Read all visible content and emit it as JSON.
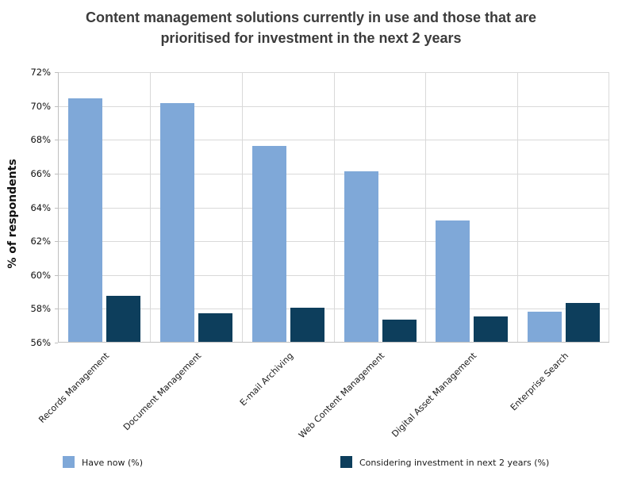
{
  "title_lines": [
    "Content management solutions currently in use and those that are",
    "prioritised for investment in the next 2 years"
  ],
  "chart_data": {
    "type": "bar",
    "title": "Content management solutions currently in use and those that are prioritised for investment in the next 2 years",
    "xlabel": "",
    "ylabel": "% of respondents",
    "ylim": [
      56,
      72
    ],
    "ytick_step": 2,
    "ytick_suffix": "%",
    "grid": true,
    "legend_position": "bottom",
    "categories": [
      "Records Management",
      "Document Management",
      "E-mail Archiving",
      "Web Content Management",
      "Digital Asset Management",
      "Enterprise Search"
    ],
    "series": [
      {
        "name": "Have now (%)",
        "color": "#7FA8D8",
        "values": [
          70.4,
          70.1,
          67.6,
          66.1,
          63.2,
          57.8
        ]
      },
      {
        "name": "Considering investment in next 2 years (%)",
        "color": "#0D3E5C",
        "values": [
          58.7,
          57.7,
          58.0,
          57.3,
          57.5,
          58.3
        ]
      }
    ]
  },
  "colors": {
    "background": "#FFFFFF",
    "title_text": "#3B3B3B",
    "axis_text": "#111111",
    "gridline": "#D9D9D9",
    "axis_line": "#BFBFBF"
  }
}
